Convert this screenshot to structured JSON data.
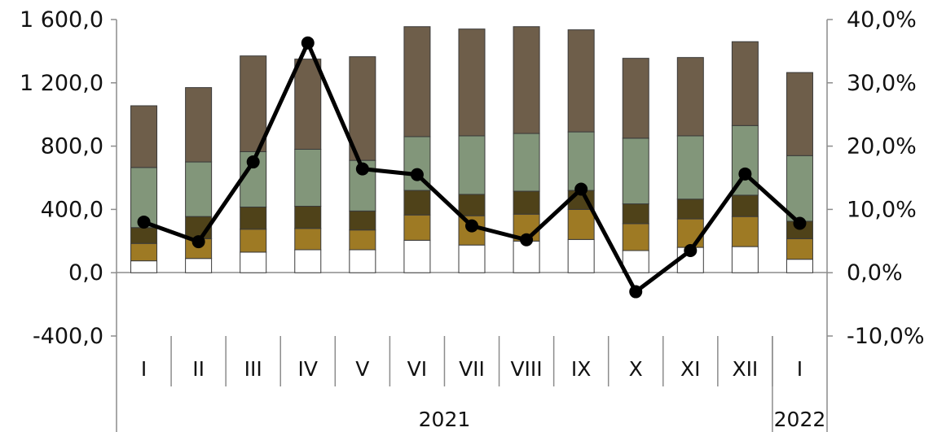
{
  "chart_data": {
    "type": "bar",
    "stacked": true,
    "title": "",
    "xlabel": "",
    "ylabel": "",
    "categories": [
      "I",
      "II",
      "III",
      "IV",
      "V",
      "VI",
      "VII",
      "VIII",
      "IX",
      "X",
      "XI",
      "XII",
      "I"
    ],
    "year_groups": [
      {
        "label": "2021",
        "count": 12
      },
      {
        "label": "2022",
        "count": 1
      }
    ],
    "ylim": [
      -400,
      1600
    ],
    "y_ticks": [
      -400,
      0,
      400,
      800,
      1200,
      1600
    ],
    "y_tick_labels": [
      "-400,0",
      "0,0",
      "400,0",
      "800,0",
      "1 200,0",
      "1 600,0"
    ],
    "y2lim": [
      -10,
      40
    ],
    "y2_ticks": [
      -10,
      0,
      10,
      20,
      30,
      40
    ],
    "y2_tick_labels": [
      "-10,0%",
      "0,0%",
      "10,0%",
      "20,0%",
      "30,0%",
      "40,0%"
    ],
    "grid": false,
    "series": [
      {
        "color": "#ffffff",
        "values": [
          75,
          90,
          130,
          145,
          145,
          205,
          175,
          200,
          210,
          140,
          160,
          165,
          85
        ]
      },
      {
        "color": "#9e7a24",
        "values": [
          110,
          125,
          145,
          135,
          125,
          160,
          185,
          170,
          190,
          170,
          180,
          190,
          130
        ]
      },
      {
        "color": "#4f4219",
        "values": [
          100,
          140,
          140,
          140,
          120,
          155,
          135,
          145,
          120,
          125,
          125,
          135,
          110
        ]
      },
      {
        "color": "#82967a",
        "values": [
          380,
          345,
          350,
          360,
          320,
          340,
          370,
          365,
          370,
          415,
          400,
          440,
          415
        ]
      },
      {
        "color": "#6e5e4a",
        "values": [
          390,
          470,
          605,
          570,
          655,
          695,
          675,
          675,
          645,
          505,
          495,
          530,
          525
        ]
      }
    ],
    "line_series": {
      "color": "#000000",
      "axis": "secondary",
      "values": [
        8.0,
        4.9,
        17.5,
        36.3,
        16.4,
        15.5,
        7.4,
        5.2,
        13.2,
        -3.0,
        3.5,
        15.6,
        7.8
      ]
    }
  }
}
